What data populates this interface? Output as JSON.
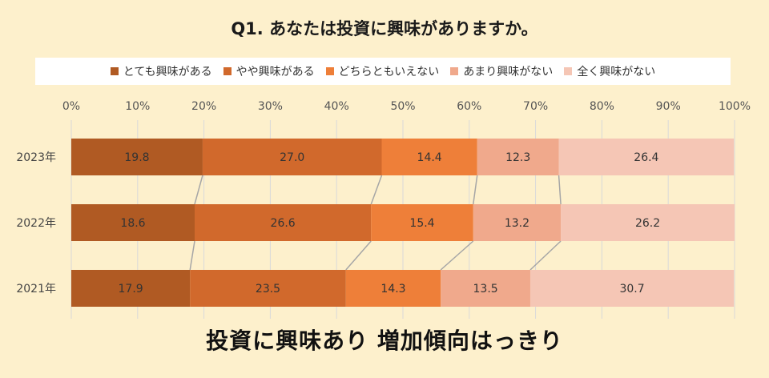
{
  "title": "Q1. あなたは投資に興味がありますか。",
  "subtitle": "投資に興味あり 増加傾向はっきり",
  "chart_data": {
    "type": "bar",
    "orientation": "horizontal",
    "stacked": "100%",
    "x_ticks": [
      "0%",
      "10%",
      "20%",
      "30%",
      "40%",
      "50%",
      "60%",
      "70%",
      "80%",
      "90%",
      "100%"
    ],
    "xlim": [
      0,
      100
    ],
    "grid": true,
    "legend_position": "top",
    "categories": [
      "2023年",
      "2022年",
      "2021年"
    ],
    "series": [
      {
        "name": "とても興味がある",
        "color": "#b05a23",
        "values": [
          19.8,
          18.6,
          17.9
        ]
      },
      {
        "name": "やや興味がある",
        "color": "#d1692c",
        "values": [
          27.0,
          26.6,
          23.5
        ]
      },
      {
        "name": "どちらともいえない",
        "color": "#ee7f39",
        "values": [
          14.4,
          15.4,
          14.3
        ]
      },
      {
        "name": "あまり興味がない",
        "color": "#f0a98c",
        "values": [
          12.3,
          13.2,
          13.5
        ]
      },
      {
        "name": "全く興味がない",
        "color": "#f5c6b5",
        "values": [
          26.4,
          26.2,
          30.7
        ]
      }
    ],
    "series_lines": true
  }
}
